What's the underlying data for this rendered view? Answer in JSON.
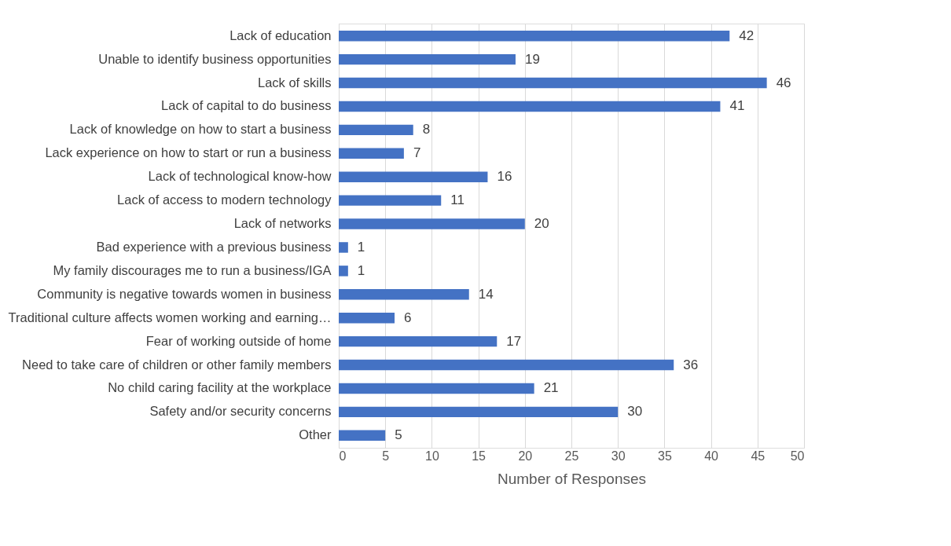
{
  "chart_data": {
    "type": "bar",
    "orientation": "horizontal",
    "categories": [
      "Lack of education",
      "Unable to identify business opportunities",
      "Lack of skills",
      "Lack of capital to do business",
      "Lack of knowledge on how to start a business",
      "Lack experience on how to start or run a business",
      "Lack of technological know-how",
      "Lack of access to modern technology",
      "Lack of networks",
      "Bad experience with a previous business",
      "My family discourages me to run a business/IGA",
      "Community is negative towards women in business",
      "Traditional culture affects women working and earning…",
      "Fear of working outside of home",
      "Need to take care of children or other family members",
      "No child caring facility at the workplace",
      "Safety and/or security concerns",
      "Other"
    ],
    "values": [
      42,
      19,
      46,
      41,
      8,
      7,
      16,
      11,
      20,
      1,
      1,
      14,
      6,
      17,
      36,
      21,
      30,
      5
    ],
    "color": "#4472c4",
    "xlabel": "Number of Responses",
    "xlim": [
      0,
      50
    ],
    "xticks": [
      0,
      5,
      10,
      15,
      20,
      25,
      30,
      35,
      40,
      45,
      50
    ],
    "grid": "x",
    "data_labels": true
  }
}
